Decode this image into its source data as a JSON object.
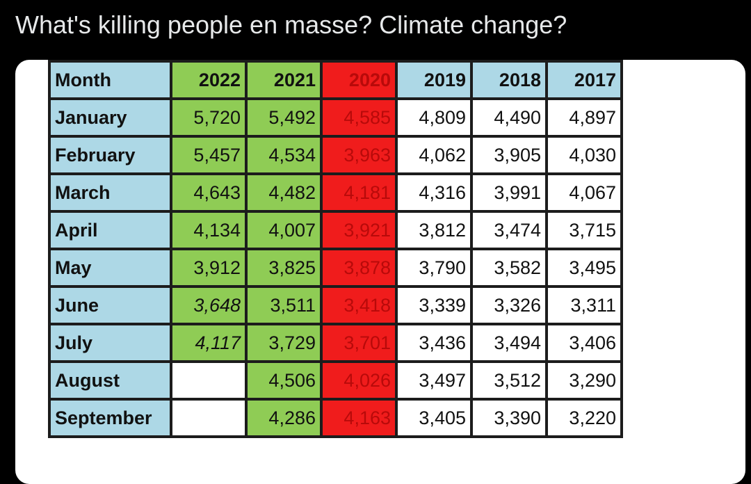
{
  "tweet": {
    "text": "What's killing people en masse? Climate change?"
  },
  "colors": {
    "month_header": "#add8e6",
    "green_years": "#8fcc55",
    "red_year": "#f01c1c",
    "red_text": "#b80a0a"
  },
  "table": {
    "headers": [
      "Month",
      "2022",
      "2021",
      "2020",
      "2019",
      "2018",
      "2017"
    ],
    "rows": [
      {
        "month": "January",
        "values": [
          "5,720",
          "5,492",
          "4,585",
          "4,809",
          "4,490",
          "4,897"
        ]
      },
      {
        "month": "February",
        "values": [
          "5,457",
          "4,534",
          "3,963",
          "4,062",
          "3,905",
          "4,030"
        ]
      },
      {
        "month": "March",
        "values": [
          "4,643",
          "4,482",
          "4,181",
          "4,316",
          "3,991",
          "4,067"
        ]
      },
      {
        "month": "April",
        "values": [
          "4,134",
          "4,007",
          "3,921",
          "3,812",
          "3,474",
          "3,715"
        ]
      },
      {
        "month": "May",
        "values": [
          "3,912",
          "3,825",
          "3,878",
          "3,790",
          "3,582",
          "3,495"
        ]
      },
      {
        "month": "June",
        "values": [
          "3,648",
          "3,511",
          "3,418",
          "3,339",
          "3,326",
          "3,311"
        ]
      },
      {
        "month": "July",
        "values": [
          "4,117",
          "3,729",
          "3,701",
          "3,436",
          "3,494",
          "3,406"
        ]
      },
      {
        "month": "August",
        "values": [
          "",
          "4,506",
          "4,026",
          "3,497",
          "3,512",
          "3,290"
        ]
      },
      {
        "month": "September",
        "values": [
          "",
          "4,286",
          "4,163",
          "3,405",
          "3,390",
          "3,220"
        ]
      }
    ]
  }
}
